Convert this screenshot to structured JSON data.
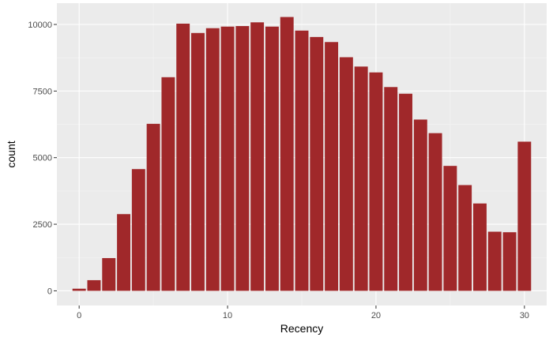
{
  "chart_data": {
    "type": "bar",
    "title": "",
    "xlabel": "Recency",
    "ylabel": "count",
    "x": [
      0,
      1,
      2,
      3,
      4,
      5,
      6,
      7,
      8,
      9,
      10,
      11,
      12,
      13,
      14,
      15,
      16,
      17,
      18,
      19,
      20,
      21,
      22,
      23,
      24,
      25,
      26,
      27,
      28,
      29,
      30
    ],
    "values": [
      80,
      400,
      1230,
      2880,
      4570,
      6270,
      8020,
      10030,
      9680,
      9860,
      9920,
      9940,
      10080,
      9920,
      10280,
      9770,
      9530,
      9340,
      8770,
      8420,
      8200,
      7650,
      7400,
      6430,
      5920,
      4690,
      3970,
      3280,
      2220,
      2200,
      5600
    ],
    "xlim": [
      -1.5,
      31.5
    ],
    "ylim": [
      -550,
      10800
    ],
    "x_ticks": [
      0,
      10,
      20,
      30
    ],
    "y_ticks": [
      0,
      2500,
      5000,
      7500,
      10000
    ],
    "x_tick_labels": [
      "0",
      "10",
      "20",
      "30"
    ],
    "y_tick_labels": [
      "0",
      "2500",
      "5000",
      "7500",
      "10000"
    ],
    "grid": true,
    "legend": "none",
    "colors": {
      "bar": "#a0282a",
      "panel": "#ebebeb",
      "grid_major": "#ffffff",
      "grid_minor": "#f5f5f5",
      "tick": "#333333"
    }
  }
}
